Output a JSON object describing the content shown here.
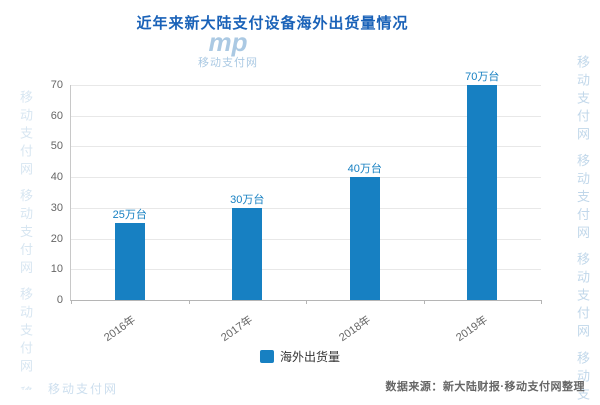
{
  "title": "近年来新大陆支付设备海外出货量情况",
  "legend": {
    "label": "海外出货量"
  },
  "source": {
    "prefix": "数据来源：",
    "text": "新大陆财报·移动支付网整理"
  },
  "watermark": {
    "logo": "mp",
    "name": "移动支付网"
  },
  "colors": {
    "title": "#1a62b8",
    "bar": "#1780c2",
    "label": "#1780c2",
    "axis_text": "#666666",
    "grid": "#e8e8e8",
    "watermark": "#8fb8da"
  },
  "chart_data": {
    "type": "bar",
    "categories": [
      "2016年",
      "2017年",
      "2018年",
      "2019年"
    ],
    "values": [
      25,
      30,
      40,
      70
    ],
    "value_labels": [
      "25万台",
      "30万台",
      "40万台",
      "70万台"
    ],
    "series": [
      {
        "name": "海外出货量",
        "values": [
          25,
          30,
          40,
          70
        ]
      }
    ],
    "title": "近年来新大陆支付设备海外出货量情况",
    "xlabel": "",
    "ylabel": "",
    "ylim": [
      0,
      70
    ],
    "ytick_step": 10,
    "grid": true,
    "legend_position": "bottom"
  }
}
